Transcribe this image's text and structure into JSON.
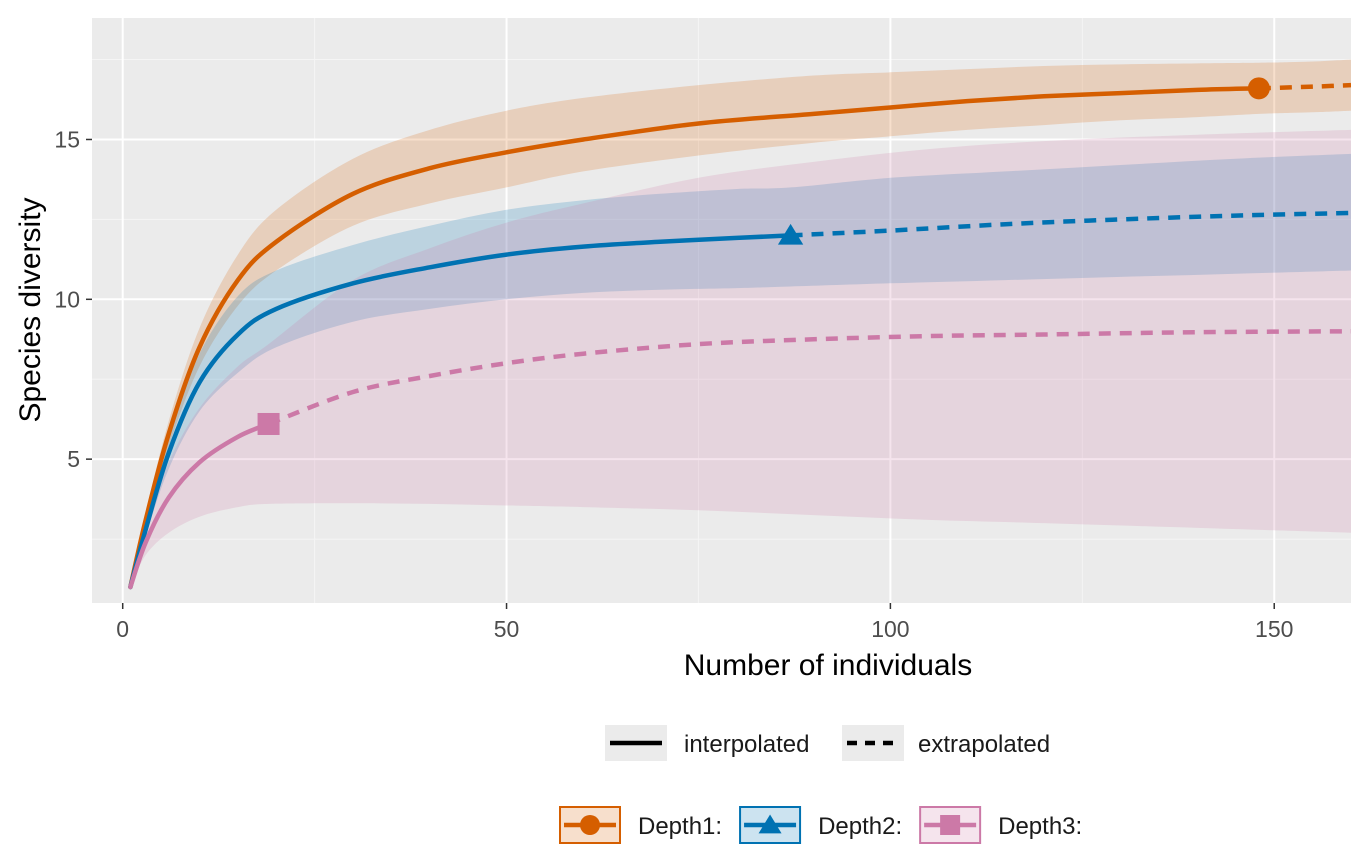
{
  "chart_data": {
    "type": "line",
    "title": "",
    "xlabel": "Number of individuals",
    "ylabel": "Species diversity",
    "xlim": [
      -4,
      160
    ],
    "ylim": [
      0.5,
      18.8
    ],
    "x_ticks": [
      0,
      50,
      100,
      150
    ],
    "y_ticks": [
      5,
      10,
      15
    ],
    "x_tick_labels": [
      "0",
      "50",
      "100",
      "150"
    ],
    "y_tick_labels": [
      "5",
      "10",
      "15"
    ],
    "grid": true,
    "legend_position": "bottom",
    "line_type_legend": [
      {
        "label": "interpolated",
        "style": "solid"
      },
      {
        "label": "extrapolated",
        "style": "dashed"
      }
    ],
    "series": [
      {
        "name": "Depth1:",
        "color": "#D55E00",
        "marker": "circle",
        "observed": {
          "x": 148,
          "y": 16.6
        },
        "interpolated": {
          "x": [
            1,
            3,
            6,
            10,
            15,
            20,
            30,
            40,
            50,
            60,
            75,
            90,
            100,
            110,
            120,
            130,
            140,
            148
          ],
          "y": [
            1.0,
            3.1,
            5.8,
            8.5,
            10.6,
            11.8,
            13.3,
            14.1,
            14.6,
            15.0,
            15.5,
            15.8,
            16.0,
            16.2,
            16.35,
            16.45,
            16.55,
            16.6
          ],
          "lower": [
            1.0,
            2.9,
            5.4,
            7.9,
            9.8,
            10.9,
            12.3,
            13.0,
            13.5,
            14.0,
            14.5,
            14.9,
            15.1,
            15.3,
            15.45,
            15.6,
            15.7,
            15.8
          ],
          "upper": [
            1.0,
            3.3,
            6.2,
            9.1,
            11.4,
            12.8,
            14.4,
            15.3,
            15.9,
            16.3,
            16.7,
            17.0,
            17.1,
            17.2,
            17.3,
            17.35,
            17.38,
            17.4
          ]
        },
        "extrapolated": {
          "x": [
            148,
            152,
            156,
            160
          ],
          "y": [
            16.6,
            16.63,
            16.66,
            16.7
          ],
          "lower": [
            15.8,
            15.83,
            15.86,
            15.9
          ],
          "upper": [
            17.4,
            17.42,
            17.45,
            17.5
          ]
        }
      },
      {
        "name": "Depth2:",
        "color": "#0072B2",
        "marker": "triangle",
        "observed": {
          "x": 87,
          "y": 12.0
        },
        "interpolated": {
          "x": [
            1,
            3,
            6,
            10,
            15,
            20,
            30,
            40,
            50,
            60,
            70,
            80,
            87
          ],
          "y": [
            1.0,
            2.8,
            5.2,
            7.4,
            8.9,
            9.7,
            10.5,
            11.0,
            11.4,
            11.65,
            11.8,
            11.92,
            12.0
          ],
          "lower": [
            1.0,
            2.6,
            4.7,
            6.5,
            7.7,
            8.5,
            9.3,
            9.7,
            10.0,
            10.2,
            10.3,
            10.35,
            10.4
          ],
          "upper": [
            1.0,
            3.0,
            5.7,
            8.3,
            10.1,
            10.9,
            11.7,
            12.3,
            12.8,
            13.1,
            13.3,
            13.45,
            13.5
          ]
        },
        "extrapolated": {
          "x": [
            87,
            100,
            115,
            130,
            145,
            160
          ],
          "y": [
            12.0,
            12.15,
            12.35,
            12.5,
            12.62,
            12.7
          ],
          "lower": [
            10.4,
            10.5,
            10.6,
            10.7,
            10.8,
            10.9
          ],
          "upper": [
            13.5,
            13.8,
            14.0,
            14.2,
            14.4,
            14.55
          ]
        }
      },
      {
        "name": "Depth3:",
        "color": "#CC79A7",
        "marker": "square",
        "observed": {
          "x": 19,
          "y": 6.1
        },
        "interpolated": {
          "x": [
            1,
            3,
            6,
            10,
            15,
            19
          ],
          "y": [
            1.0,
            2.4,
            3.8,
            4.9,
            5.7,
            6.1
          ],
          "lower": [
            1.0,
            2.0,
            2.7,
            3.2,
            3.5,
            3.6
          ],
          "upper": [
            1.0,
            2.8,
            4.9,
            6.6,
            7.9,
            8.6
          ]
        },
        "extrapolated": {
          "x": [
            19,
            30,
            40,
            50,
            60,
            75,
            90,
            105,
            120,
            140,
            160
          ],
          "y": [
            6.1,
            7.1,
            7.6,
            8.0,
            8.3,
            8.6,
            8.75,
            8.85,
            8.9,
            8.97,
            9.0
          ],
          "lower": [
            3.6,
            3.62,
            3.6,
            3.55,
            3.5,
            3.4,
            3.25,
            3.1,
            3.0,
            2.85,
            2.7
          ],
          "upper": [
            8.6,
            10.6,
            11.6,
            12.4,
            13.0,
            13.8,
            14.3,
            14.7,
            14.95,
            15.15,
            15.3
          ]
        }
      }
    ]
  }
}
